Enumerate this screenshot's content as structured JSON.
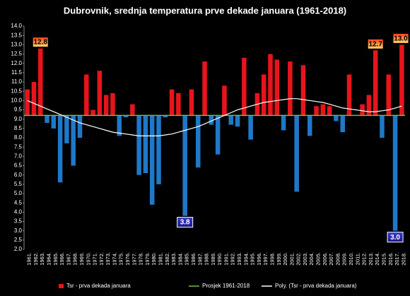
{
  "chart_data": {
    "type": "bar",
    "title": "Dubrovnik, srednja temperatura prve dekade januara (1961-2018)",
    "categories": [
      "1961.",
      "1962.",
      "1963.",
      "1964.",
      "1965.",
      "1966.",
      "1967.",
      "1968.",
      "1969.",
      "1970.",
      "1971.",
      "1972.",
      "1973.",
      "1974.",
      "1975.",
      "1976.",
      "1977.",
      "1978.",
      "1979.",
      "1980.",
      "1981.",
      "1982.",
      "1983.",
      "1984.",
      "1985.",
      "1986.",
      "1987.",
      "1988.",
      "1989.",
      "1990.",
      "1991.",
      "1992.",
      "1993.",
      "1994.",
      "1995.",
      "1996.",
      "1997.",
      "1998.",
      "1999.",
      "2000.",
      "2001.",
      "2002.",
      "2003.",
      "2004.",
      "2005.",
      "2006.",
      "2007.",
      "2008.",
      "2009.",
      "2010.",
      "2011.",
      "2012.",
      "2013.",
      "2014.",
      "2015.",
      "2016.",
      "2017.",
      "2018."
    ],
    "series": [
      {
        "name": "Tsr - prva dekada januara",
        "color": "#e8141b",
        "below_color": "#1f78c8",
        "values": [
          10.6,
          11.0,
          12.8,
          8.8,
          8.5,
          5.6,
          7.7,
          6.5,
          8.0,
          11.4,
          9.5,
          11.6,
          10.3,
          10.4,
          8.1,
          9.1,
          9.8,
          6.0,
          6.1,
          4.4,
          5.5,
          9.1,
          10.6,
          10.4,
          3.8,
          10.6,
          6.4,
          12.1,
          8.7,
          7.1,
          10.8,
          8.7,
          8.6,
          12.3,
          7.9,
          10.4,
          11.4,
          12.5,
          12.2,
          8.4,
          12.1,
          5.1,
          11.9,
          8.1,
          9.7,
          9.8,
          9.7,
          8.9,
          8.3,
          11.4,
          9.2,
          9.8,
          10.3,
          12.7,
          8.0,
          11.4,
          3.0,
          13.0
        ],
        "value_labels": [
          "12.8",
          "3.8",
          "12.7",
          "3.0",
          "13.0"
        ],
        "labeled_indices": [
          2,
          24,
          53,
          56,
          57
        ]
      },
      {
        "name": "Prosjek 1961-2018",
        "color": "#7ab648",
        "value": 9.2
      },
      {
        "name": "Poly. (Tsr - prva dekada januara)",
        "color": "#ffffff",
        "values": [
          10.0,
          9.85,
          9.7,
          9.55,
          9.4,
          9.25,
          9.1,
          8.95,
          8.8,
          8.7,
          8.6,
          8.5,
          8.4,
          8.3,
          8.25,
          8.2,
          8.15,
          8.1,
          8.1,
          8.1,
          8.1,
          8.15,
          8.2,
          8.3,
          8.4,
          8.5,
          8.6,
          8.75,
          8.9,
          9.05,
          9.2,
          9.35,
          9.5,
          9.6,
          9.7,
          9.8,
          9.9,
          9.95,
          10.0,
          10.05,
          10.1,
          10.1,
          10.05,
          10.0,
          9.95,
          9.9,
          9.8,
          9.7,
          9.6,
          9.55,
          9.5,
          9.45,
          9.4,
          9.4,
          9.45,
          9.5,
          9.6,
          9.7
        ]
      }
    ],
    "ylim": [
      2.0,
      14.0
    ],
    "yticks": [
      {
        "value": 2.0,
        "label": "2.0"
      },
      {
        "value": 2.5,
        "label": "2.5"
      },
      {
        "value": 3.0,
        "label": "3.0"
      },
      {
        "value": 3.5,
        "label": "3.5"
      },
      {
        "value": 4.0,
        "label": "4.0"
      },
      {
        "value": 4.5,
        "label": "4.5"
      },
      {
        "value": 5.0,
        "label": "5.0"
      },
      {
        "value": 5.5,
        "label": "5.5"
      },
      {
        "value": 6.0,
        "label": "6.0"
      },
      {
        "value": 6.5,
        "label": "6.5"
      },
      {
        "value": 7.0,
        "label": "7.0"
      },
      {
        "value": 7.5,
        "label": "7.5"
      },
      {
        "value": 8.0,
        "label": "8.0"
      },
      {
        "value": 8.5,
        "label": "8.5"
      },
      {
        "value": 9.0,
        "label": "9.0"
      },
      {
        "value": 9.5,
        "label": "9.5"
      },
      {
        "value": 10.0,
        "label": "10.0"
      },
      {
        "value": 10.5,
        "label": "10.5"
      },
      {
        "value": 11.0,
        "label": "11.0"
      },
      {
        "value": 11.5,
        "label": "11.5"
      },
      {
        "value": 12.0,
        "label": "12.0"
      },
      {
        "value": 12.5,
        "label": "12.5"
      },
      {
        "value": 13.0,
        "label": "13.0"
      },
      {
        "value": 13.5,
        "label": "13.5"
      },
      {
        "value": 14.0,
        "label": "14.0"
      }
    ],
    "grid": false,
    "legend": "bottom"
  }
}
